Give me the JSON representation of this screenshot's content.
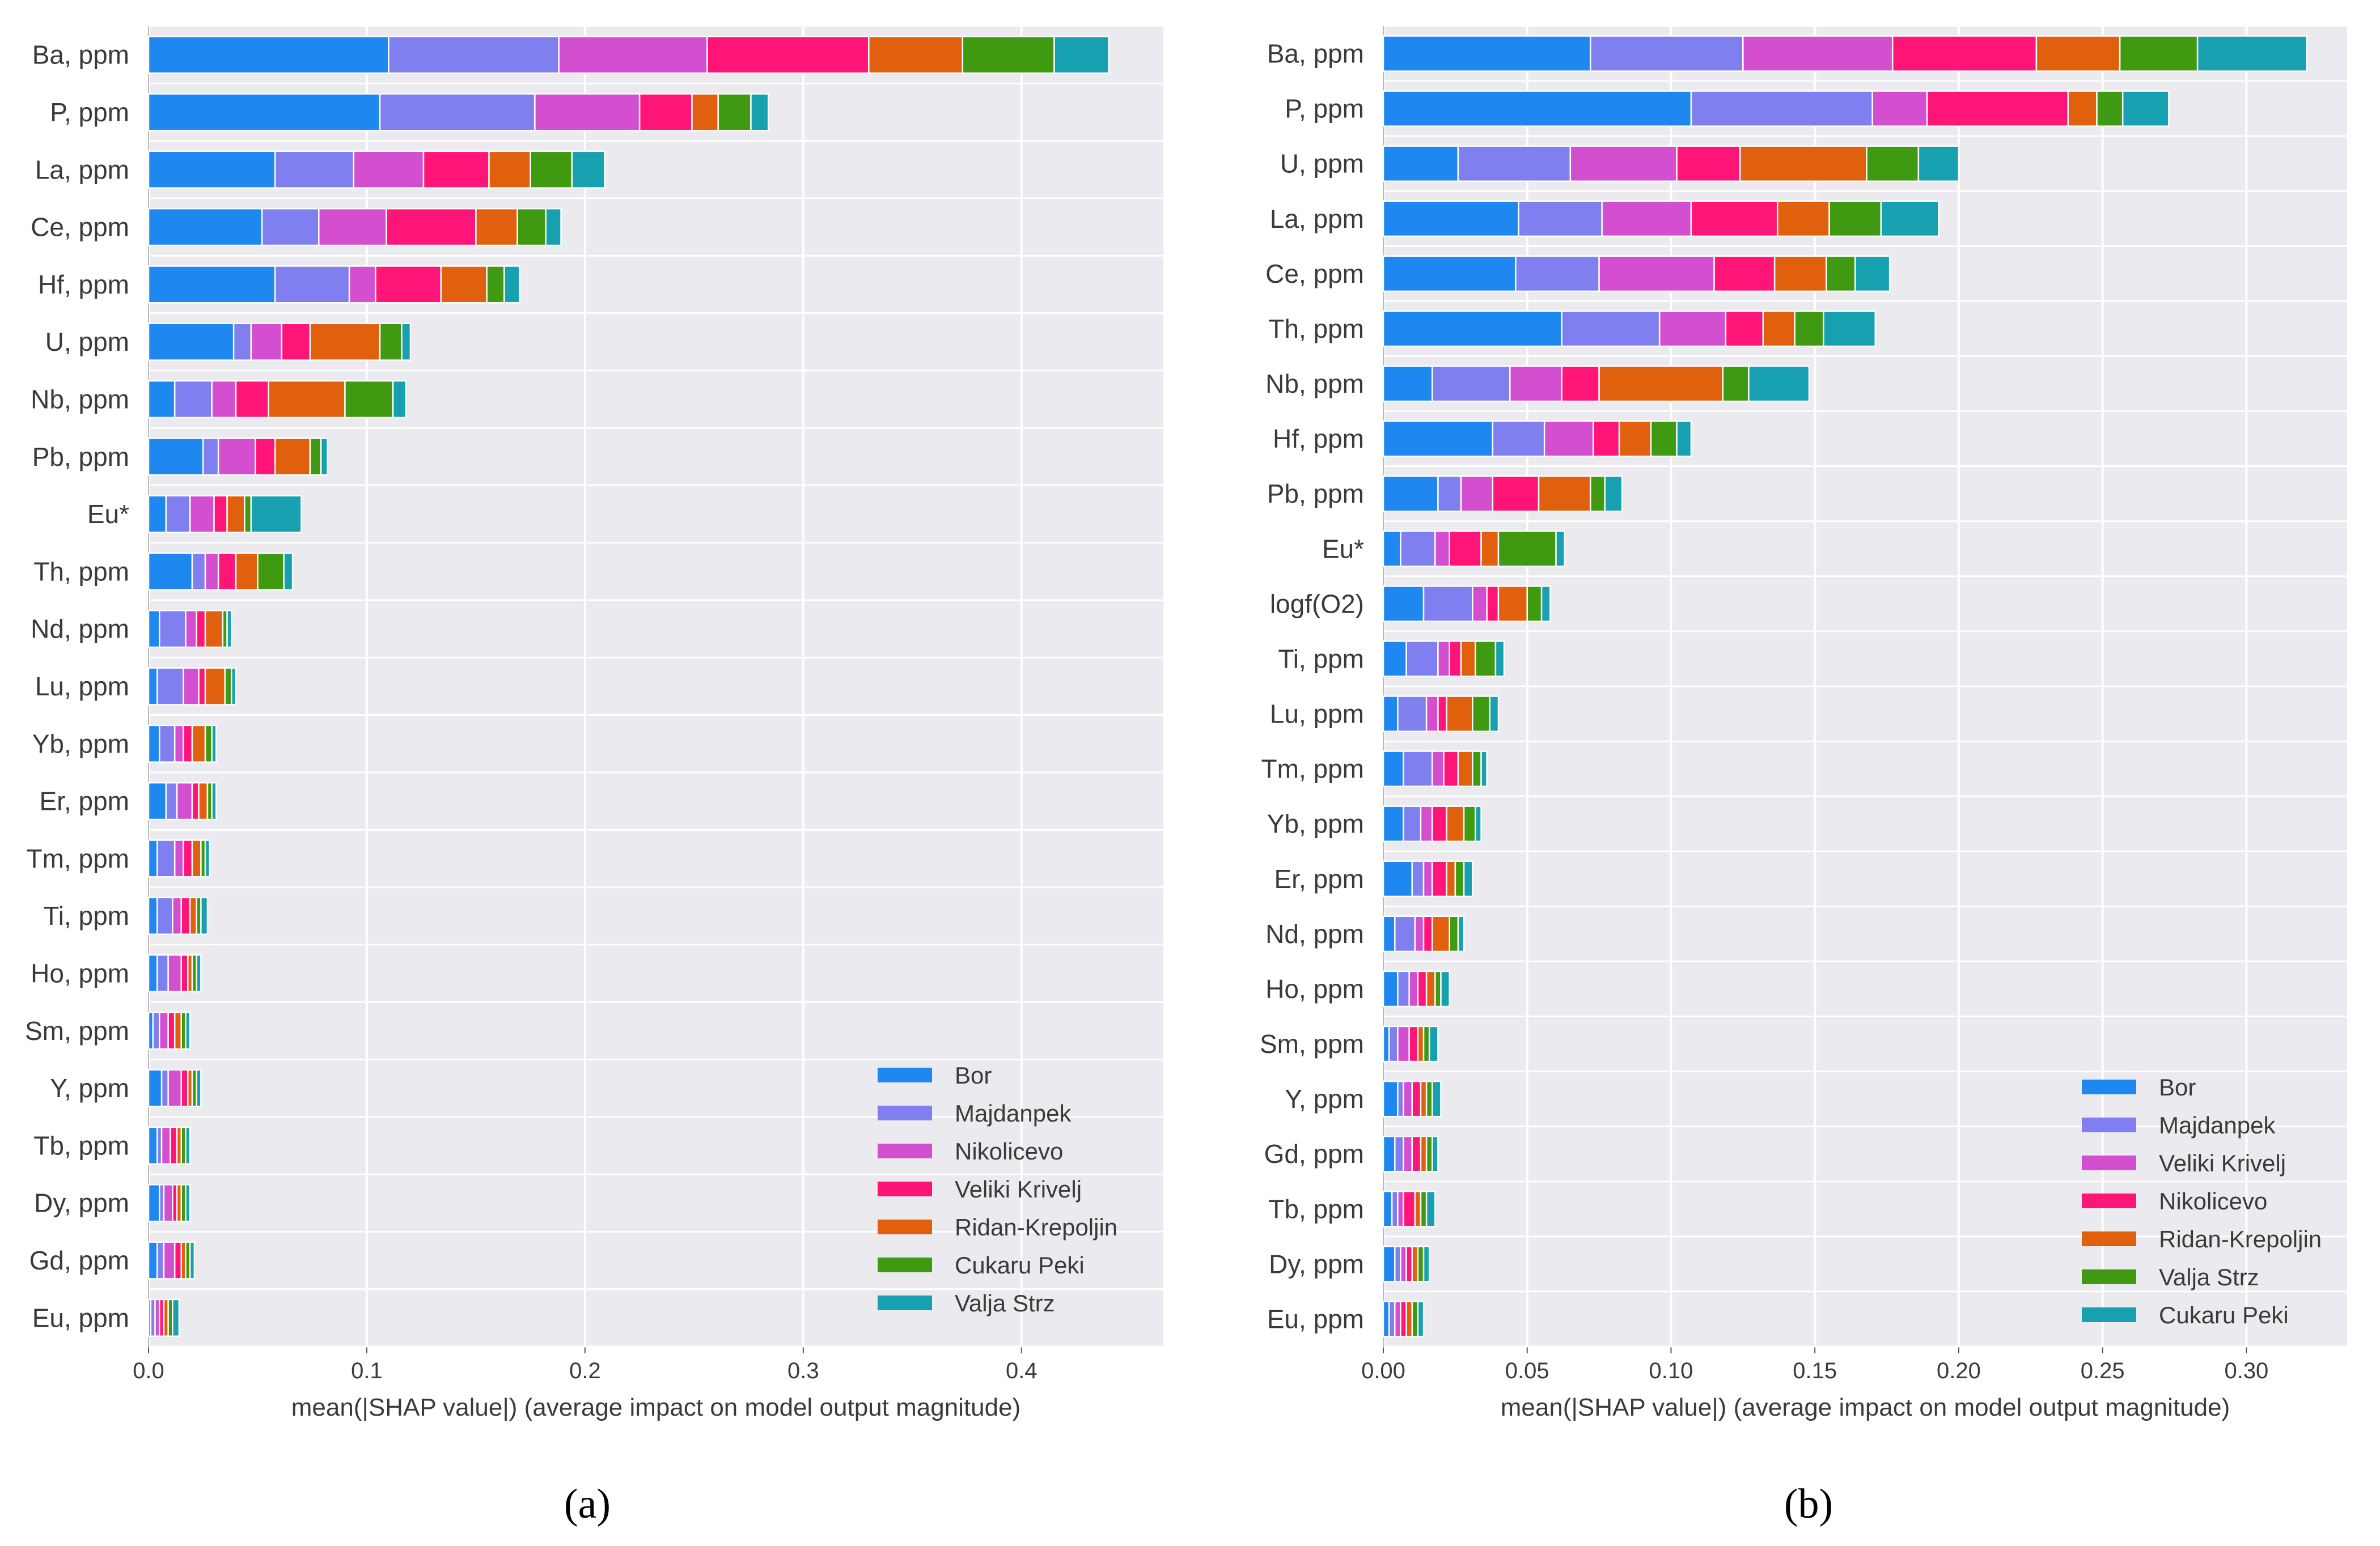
{
  "chart_data": [
    {
      "type": "bar",
      "orientation": "horizontal",
      "stacked": true,
      "panel_label": "a",
      "xlabel": "mean(|SHAP value|) (average impact on model output magnitude)",
      "xlim": [
        0,
        0.465
      ],
      "xticks": [
        0.0,
        0.1,
        0.2,
        0.3,
        0.4
      ],
      "xtick_labels": [
        "0.0",
        "0.1",
        "0.2",
        "0.3",
        "0.4"
      ],
      "grid": true,
      "legend_position": "bottom-right",
      "categories": [
        "Ba, ppm",
        "P, ppm",
        "La, ppm",
        "Ce, ppm",
        "Hf, ppm",
        "U, ppm",
        "Nb, ppm",
        "Pb, ppm",
        "Eu*",
        "Th, ppm",
        "Nd, ppm",
        "Lu, ppm",
        "Yb, ppm",
        "Er, ppm",
        "Tm, ppm",
        "Ti, ppm",
        "Ho, ppm",
        "Sm, ppm",
        "Y, ppm",
        "Tb, ppm",
        "Dy, ppm",
        "Gd, ppm",
        "Eu, ppm"
      ],
      "series": [
        {
          "name": "Bor",
          "color": "#1e88f0",
          "values": [
            0.11,
            0.106,
            0.058,
            0.052,
            0.058,
            0.039,
            0.012,
            0.025,
            0.008,
            0.02,
            0.005,
            0.004,
            0.005,
            0.008,
            0.004,
            0.004,
            0.004,
            0.002,
            0.006,
            0.004,
            0.005,
            0.004,
            0.001
          ]
        },
        {
          "name": "Majdanpek",
          "color": "#7f7ff0",
          "values": [
            0.078,
            0.071,
            0.036,
            0.026,
            0.034,
            0.008,
            0.017,
            0.007,
            0.011,
            0.006,
            0.012,
            0.012,
            0.007,
            0.005,
            0.008,
            0.007,
            0.005,
            0.003,
            0.003,
            0.002,
            0.002,
            0.003,
            0.002
          ]
        },
        {
          "name": "Nikolicevo",
          "color": "#d44fcf",
          "values": [
            0.068,
            0.048,
            0.032,
            0.031,
            0.012,
            0.014,
            0.011,
            0.017,
            0.011,
            0.006,
            0.005,
            0.007,
            0.004,
            0.007,
            0.004,
            0.004,
            0.006,
            0.004,
            0.006,
            0.004,
            0.004,
            0.005,
            0.002
          ]
        },
        {
          "name": "Veliki Krivelj",
          "color": "#ff1478",
          "values": [
            0.074,
            0.024,
            0.03,
            0.041,
            0.03,
            0.013,
            0.015,
            0.009,
            0.006,
            0.008,
            0.004,
            0.003,
            0.004,
            0.003,
            0.004,
            0.004,
            0.003,
            0.003,
            0.003,
            0.003,
            0.002,
            0.003,
            0.002
          ]
        },
        {
          "name": "Ridan-Krepoljin",
          "color": "#e0600e",
          "values": [
            0.043,
            0.012,
            0.019,
            0.019,
            0.021,
            0.032,
            0.035,
            0.016,
            0.008,
            0.01,
            0.008,
            0.009,
            0.006,
            0.004,
            0.004,
            0.003,
            0.002,
            0.003,
            0.002,
            0.002,
            0.002,
            0.002,
            0.002
          ]
        },
        {
          "name": "Cukaru Peki",
          "color": "#3f9a12",
          "values": [
            0.042,
            0.015,
            0.019,
            0.013,
            0.008,
            0.01,
            0.022,
            0.005,
            0.003,
            0.012,
            0.002,
            0.003,
            0.003,
            0.002,
            0.002,
            0.002,
            0.002,
            0.002,
            0.002,
            0.002,
            0.002,
            0.002,
            0.002
          ]
        },
        {
          "name": "Valja Strz",
          "color": "#17a0b0",
          "values": [
            0.025,
            0.008,
            0.015,
            0.007,
            0.007,
            0.004,
            0.006,
            0.003,
            0.023,
            0.004,
            0.002,
            0.002,
            0.002,
            0.002,
            0.002,
            0.003,
            0.002,
            0.002,
            0.002,
            0.002,
            0.002,
            0.002,
            0.003
          ]
        }
      ]
    },
    {
      "type": "bar",
      "orientation": "horizontal",
      "stacked": true,
      "panel_label": "b",
      "xlabel": "mean(|SHAP value|) (average impact on model output magnitude)",
      "xlim": [
        0,
        0.335
      ],
      "xticks": [
        0.0,
        0.05,
        0.1,
        0.15,
        0.2,
        0.25,
        0.3
      ],
      "xtick_labels": [
        "0.00",
        "0.05",
        "0.10",
        "0.15",
        "0.20",
        "0.25",
        "0.30"
      ],
      "grid": true,
      "legend_position": "bottom-right",
      "categories": [
        "Ba, ppm",
        "P, ppm",
        "U, ppm",
        "La, ppm",
        "Ce, ppm",
        "Th, ppm",
        "Nb, ppm",
        "Hf, ppm",
        "Pb, ppm",
        "Eu*",
        "logf(O2)",
        "Ti, ppm",
        "Lu, ppm",
        "Tm, ppm",
        "Yb, ppm",
        "Er, ppm",
        "Nd, ppm",
        "Ho, ppm",
        "Sm, ppm",
        "Y, ppm",
        "Gd, ppm",
        "Tb, ppm",
        "Dy, ppm",
        "Eu, ppm"
      ],
      "series": [
        {
          "name": "Bor",
          "color": "#1e88f0",
          "values": [
            0.072,
            0.107,
            0.026,
            0.047,
            0.046,
            0.062,
            0.017,
            0.038,
            0.019,
            0.006,
            0.014,
            0.008,
            0.005,
            0.007,
            0.007,
            0.01,
            0.004,
            0.005,
            0.002,
            0.005,
            0.004,
            0.003,
            0.004,
            0.002
          ]
        },
        {
          "name": "Majdanpek",
          "color": "#7f7ff0",
          "values": [
            0.053,
            0.063,
            0.039,
            0.029,
            0.029,
            0.034,
            0.027,
            0.018,
            0.008,
            0.012,
            0.017,
            0.011,
            0.01,
            0.01,
            0.006,
            0.004,
            0.007,
            0.004,
            0.003,
            0.002,
            0.003,
            0.002,
            0.002,
            0.002
          ]
        },
        {
          "name": "Veliki Krivelj",
          "color": "#d44fcf",
          "values": [
            0.052,
            0.019,
            0.037,
            0.031,
            0.04,
            0.023,
            0.018,
            0.017,
            0.011,
            0.005,
            0.005,
            0.004,
            0.004,
            0.004,
            0.004,
            0.003,
            0.003,
            0.003,
            0.004,
            0.003,
            0.003,
            0.002,
            0.002,
            0.002
          ]
        },
        {
          "name": "Nikolicevo",
          "color": "#ff1478",
          "values": [
            0.05,
            0.049,
            0.022,
            0.03,
            0.021,
            0.013,
            0.013,
            0.009,
            0.016,
            0.011,
            0.004,
            0.004,
            0.003,
            0.005,
            0.005,
            0.005,
            0.003,
            0.003,
            0.003,
            0.003,
            0.003,
            0.004,
            0.002,
            0.002
          ]
        },
        {
          "name": "Ridan-Krepoljin",
          "color": "#e0600e",
          "values": [
            0.029,
            0.01,
            0.044,
            0.018,
            0.018,
            0.011,
            0.043,
            0.011,
            0.018,
            0.006,
            0.01,
            0.005,
            0.009,
            0.005,
            0.006,
            0.003,
            0.006,
            0.003,
            0.002,
            0.002,
            0.002,
            0.002,
            0.002,
            0.002
          ]
        },
        {
          "name": "Valja Strz",
          "color": "#3f9a12",
          "values": [
            0.027,
            0.009,
            0.018,
            0.018,
            0.01,
            0.01,
            0.009,
            0.009,
            0.005,
            0.02,
            0.005,
            0.007,
            0.006,
            0.003,
            0.004,
            0.003,
            0.003,
            0.002,
            0.002,
            0.002,
            0.002,
            0.002,
            0.002,
            0.002
          ]
        },
        {
          "name": "Cukaru Peki",
          "color": "#17a0b0",
          "values": [
            0.038,
            0.016,
            0.014,
            0.02,
            0.012,
            0.018,
            0.021,
            0.005,
            0.006,
            0.003,
            0.003,
            0.003,
            0.003,
            0.002,
            0.002,
            0.003,
            0.002,
            0.003,
            0.003,
            0.003,
            0.002,
            0.003,
            0.002,
            0.002
          ]
        }
      ]
    }
  ],
  "captions": [
    "(a)",
    "(b)"
  ]
}
